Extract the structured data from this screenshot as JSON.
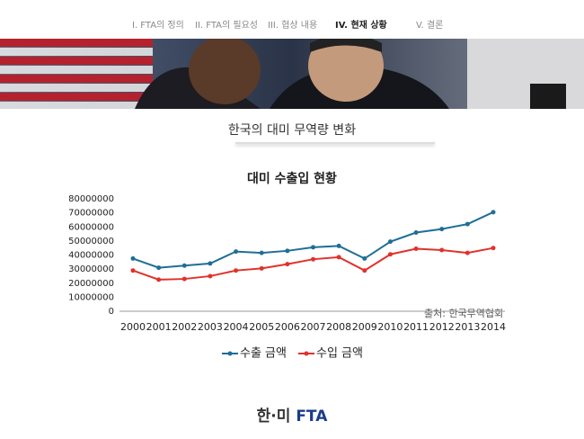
{
  "nav": [
    "I. FTA의 정의",
    "II. FTA의 필요성",
    "III. 협상 내용",
    "IV. 현재 상황",
    "V. 결론"
  ],
  "section_title": "한국의 대미 무역량 변화",
  "chart_data": {
    "type": "line",
    "title": "대미 수출입 현황",
    "categories": [
      "2000",
      "2001",
      "2002",
      "2003",
      "2004",
      "2005",
      "2006",
      "2007",
      "2008",
      "2009",
      "2010",
      "2011",
      "2012",
      "2013",
      "2014"
    ],
    "series": [
      {
        "name": "수출 금액",
        "color": "#1f6e96",
        "values": [
          37500000,
          31000000,
          32500000,
          34000000,
          42500000,
          41500000,
          43000000,
          45500000,
          46500000,
          37500000,
          49500000,
          56000000,
          58500000,
          62000000,
          70500000
        ]
      },
      {
        "name": "수입 금액",
        "color": "#e0322c",
        "values": [
          29000000,
          22500000,
          23000000,
          25000000,
          29000000,
          30500000,
          33500000,
          37000000,
          38500000,
          29000000,
          40500000,
          44500000,
          43500000,
          41500000,
          45000000
        ]
      }
    ],
    "ylim": [
      0,
      80000000
    ],
    "yticks": [
      0,
      10000000,
      20000000,
      30000000,
      40000000,
      50000000,
      60000000,
      70000000,
      80000000
    ],
    "grid": false,
    "legend": "bottom",
    "source": "출처: 한국무역협회"
  },
  "logo": {
    "korea_us": "한·미",
    "fta": "FTA"
  }
}
